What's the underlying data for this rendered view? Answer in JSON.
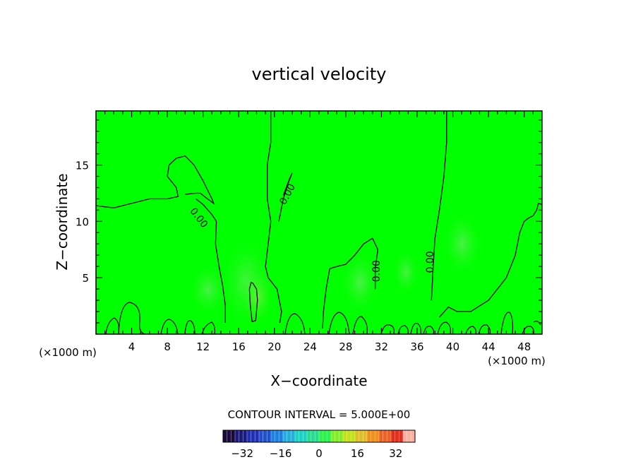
{
  "chart_data": {
    "type": "contour",
    "title": "vertical velocity",
    "xlabel": "X−coordinate",
    "ylabel": "Z−coordinate",
    "x_unit_label": "(×1000 m)",
    "x_ticks": [
      4,
      8,
      12,
      16,
      20,
      24,
      28,
      32,
      36,
      40,
      44,
      48
    ],
    "y_ticks": [
      5,
      10,
      15
    ],
    "xlim": [
      0,
      50
    ],
    "ylim": [
      0,
      19.8
    ],
    "grid": false,
    "contour_interval_text": "CONTOUR INTERVAL = 5.000E+00",
    "contour_labels": [
      {
        "text": "0.00",
        "x": 11.5,
        "y": 10.3
      },
      {
        "text": "0.00",
        "x": 21.5,
        "y": 12.4
      },
      {
        "text": "0.00",
        "x": 31.5,
        "y": 5.6
      },
      {
        "text": "0.00",
        "x": 37.5,
        "y": 6.4
      }
    ],
    "zero_contours": [
      [
        [
          0,
          11.4
        ],
        [
          2,
          11.2
        ],
        [
          4,
          11.6
        ],
        [
          6,
          12
        ],
        [
          8,
          12
        ],
        [
          9.2,
          12.2
        ],
        [
          9,
          13
        ],
        [
          8,
          14
        ],
        [
          8.2,
          15
        ],
        [
          9,
          15.6
        ],
        [
          10,
          15.8
        ],
        [
          11,
          15
        ],
        [
          12,
          13.6
        ],
        [
          13,
          12
        ],
        [
          13.2,
          11.6
        ],
        [
          12.5,
          12
        ],
        [
          11.7,
          12.5
        ],
        [
          11.2,
          12.5
        ],
        [
          10,
          12.4
        ]
      ],
      [
        [
          11.2,
          12
        ],
        [
          12,
          11.5
        ],
        [
          13,
          10.6
        ],
        [
          13.5,
          10
        ],
        [
          13.4,
          8
        ],
        [
          13.8,
          6
        ],
        [
          14.2,
          4.3
        ],
        [
          14.5,
          2.5
        ],
        [
          14.5,
          1
        ]
      ],
      [
        [
          19.6,
          19.8
        ],
        [
          19.6,
          17
        ],
        [
          19.2,
          15
        ],
        [
          19.2,
          12
        ],
        [
          19.6,
          10
        ],
        [
          19.3,
          8
        ],
        [
          19,
          6
        ],
        [
          19.3,
          5
        ],
        [
          20.3,
          4
        ],
        [
          20.8,
          2
        ],
        [
          20.6,
          1
        ]
      ],
      [
        [
          21,
          12.3
        ],
        [
          21.7,
          13.8
        ],
        [
          22,
          14.3
        ],
        [
          21.6,
          13.5
        ],
        [
          21,
          12
        ],
        [
          20.5,
          10
        ]
      ],
      [
        [
          25.4,
          0.5
        ],
        [
          25.5,
          2
        ],
        [
          25.8,
          4
        ],
        [
          26.2,
          5.8
        ],
        [
          27,
          6
        ],
        [
          28,
          6.2
        ],
        [
          29,
          7
        ],
        [
          30,
          8
        ],
        [
          31,
          8.5
        ],
        [
          31.6,
          7.5
        ],
        [
          31.3,
          5.8
        ],
        [
          31.3,
          4
        ]
      ],
      [
        [
          39.3,
          19.8
        ],
        [
          39.3,
          17
        ],
        [
          39,
          14
        ],
        [
          38.5,
          11
        ],
        [
          38,
          8.5
        ],
        [
          37.8,
          6
        ],
        [
          37.6,
          3
        ]
      ],
      [
        [
          38.5,
          1.5
        ],
        [
          39.5,
          2.4
        ],
        [
          40.5,
          2
        ],
        [
          42,
          2
        ],
        [
          43,
          2.5
        ],
        [
          44,
          3
        ],
        [
          45,
          4
        ],
        [
          46,
          5
        ],
        [
          47,
          7
        ],
        [
          47.5,
          9
        ],
        [
          48,
          10
        ],
        [
          48.5,
          10.3
        ],
        [
          49,
          10.5
        ],
        [
          49.4,
          11
        ],
        [
          49.6,
          11.6
        ],
        [
          50,
          11.5
        ]
      ],
      [
        [
          17.6,
          4.5
        ],
        [
          18,
          4
        ],
        [
          18.1,
          3
        ],
        [
          17.9,
          1.2
        ],
        [
          17.5,
          1.1
        ],
        [
          17.3,
          2.5
        ],
        [
          17.2,
          4
        ],
        [
          17.4,
          4.6
        ],
        [
          17.6,
          4.5
        ]
      ]
    ],
    "colorbar": {
      "ticks": [
        -32,
        -16,
        0,
        16,
        32
      ],
      "range": [
        -40,
        40
      ],
      "colors": [
        "#1a0a3a",
        "#1a1a80",
        "#2030b0",
        "#2050d0",
        "#2080e0",
        "#20b0e0",
        "#20d0c0",
        "#20e090",
        "#30f050",
        "#80f020",
        "#c0e020",
        "#e0c020",
        "#f09020",
        "#f06020",
        "#e03020",
        "#ffb0a0"
      ]
    }
  }
}
